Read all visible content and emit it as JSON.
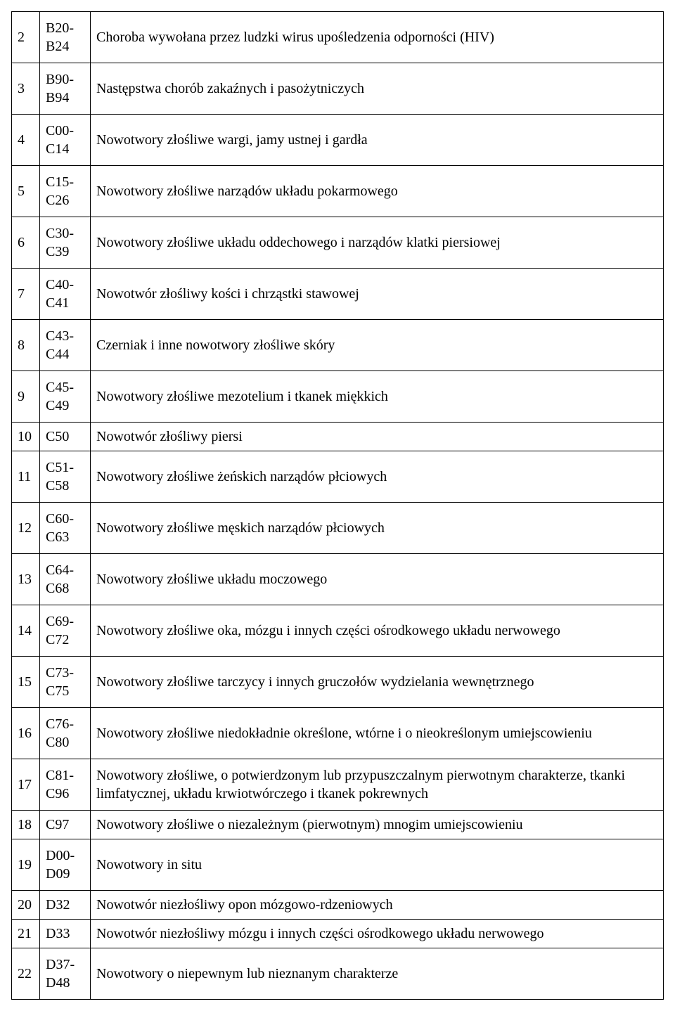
{
  "table": {
    "columns": [
      "num",
      "code",
      "description"
    ],
    "rows": [
      {
        "num": "2",
        "code": "B20-B24",
        "desc": "Choroba wywołana przez ludzki wirus upośledzenia odporności (HIV)",
        "short": false
      },
      {
        "num": "3",
        "code": "B90-B94",
        "desc": "Następstwa chorób zakaźnych i pasożytniczych",
        "short": false
      },
      {
        "num": "4",
        "code": "C00-C14",
        "desc": "Nowotwory złośliwe wargi, jamy ustnej i gardła",
        "short": false
      },
      {
        "num": "5",
        "code": "C15-C26",
        "desc": "Nowotwory złośliwe narządów układu pokarmowego",
        "short": false
      },
      {
        "num": "6",
        "code": "C30-C39",
        "desc": "Nowotwory złośliwe układu oddechowego i narządów klatki piersiowej",
        "short": false
      },
      {
        "num": "7",
        "code": "C40-C41",
        "desc": "Nowotwór złośliwy kości i chrząstki stawowej",
        "short": false
      },
      {
        "num": "8",
        "code": "C43-C44",
        "desc": "Czerniak i inne nowotwory złośliwe skóry",
        "short": false
      },
      {
        "num": "9",
        "code": "C45-C49",
        "desc": "Nowotwory złośliwe mezotelium i tkanek miękkich",
        "short": false
      },
      {
        "num": "10",
        "code": "C50",
        "desc": "Nowotwór złośliwy piersi",
        "short": true
      },
      {
        "num": "11",
        "code": "C51-C58",
        "desc": "Nowotwory złośliwe żeńskich narządów płciowych",
        "short": false
      },
      {
        "num": "12",
        "code": "C60-C63",
        "desc": "Nowotwory złośliwe męskich narządów płciowych",
        "short": false
      },
      {
        "num": "13",
        "code": "C64-C68",
        "desc": "Nowotwory złośliwe układu moczowego",
        "short": false
      },
      {
        "num": "14",
        "code": "C69-C72",
        "desc": "Nowotwory złośliwe oka, mózgu i innych części ośrodkowego układu nerwowego",
        "short": false
      },
      {
        "num": "15",
        "code": "C73-C75",
        "desc": "Nowotwory złośliwe tarczycy i innych gruczołów wydzielania wewnętrznego",
        "short": false
      },
      {
        "num": "16",
        "code": "C76-C80",
        "desc": "Nowotwory złośliwe niedokładnie określone, wtórne i o nieokreślonym umiejscowieniu",
        "short": false
      },
      {
        "num": "17",
        "code": "C81-C96",
        "desc": "Nowotwory złośliwe, o potwierdzonym lub przypuszczalnym pierwotnym charakterze, tkanki limfatycznej, układu krwiotwórczego i tkanek pokrewnych",
        "short": false
      },
      {
        "num": "18",
        "code": "C97",
        "desc": "Nowotwory złośliwe o niezależnym (pierwotnym) mnogim umiejscowieniu",
        "short": true
      },
      {
        "num": "19",
        "code": "D00-D09",
        "desc": "Nowotwory in situ",
        "short": false
      },
      {
        "num": "20",
        "code": "D32",
        "desc": "Nowotwór niezłośliwy opon mózgowo-rdzeniowych",
        "short": true
      },
      {
        "num": "21",
        "code": "D33",
        "desc": "Nowotwór niezłośliwy mózgu i innych części ośrodkowego układu nerwowego",
        "short": true
      },
      {
        "num": "22",
        "code": "D37-D48",
        "desc": "Nowotwory o niepewnym lub nieznanym charakterze",
        "short": false
      }
    ],
    "border_color": "#000000",
    "font_family": "Times New Roman",
    "font_size": 20,
    "text_color": "#000000",
    "background_color": "#ffffff",
    "col_widths": {
      "num": 40,
      "code": 72
    }
  }
}
